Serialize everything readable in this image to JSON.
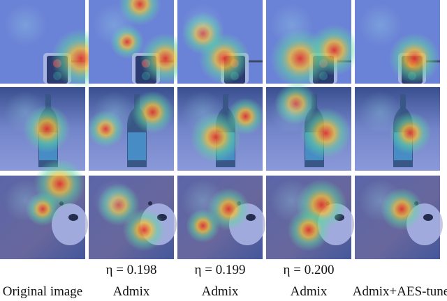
{
  "figure": {
    "columns": [
      {
        "label": "Original image"
      },
      {
        "eta": "η = 0.198",
        "label": "Admix"
      },
      {
        "eta": "η = 0.199",
        "label": "Admix"
      },
      {
        "eta": "η = 0.200",
        "label": "Admix"
      },
      {
        "label": "Admix+AES-tune"
      }
    ]
  }
}
